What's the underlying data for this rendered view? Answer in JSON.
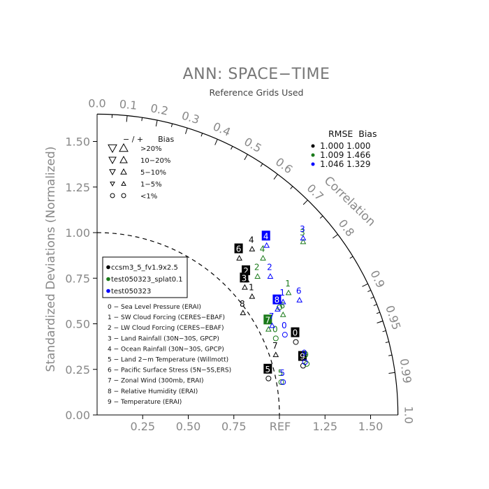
{
  "chart_data": {
    "type": "scatter",
    "subtype": "taylor-diagram",
    "title": "ANN: SPACE−TIME",
    "subtitle": "Reference Grids Used",
    "ylabel": "Standardized Deviations (Normalized)",
    "correlation_label": "Correlation",
    "ref_label": "REF",
    "xlim": [
      0,
      1.65
    ],
    "ylim": [
      0,
      1.65
    ],
    "std_ticks": [
      "0.00",
      "0.25",
      "0.50",
      "0.75",
      "1.00",
      "1.25",
      "1.50"
    ],
    "x_ticks": [
      "0.25",
      "0.50",
      "0.75",
      "1.25",
      "1.50"
    ],
    "x_tick_values": [
      0.25,
      0.5,
      0.75,
      1.25,
      1.5
    ],
    "y_tick_values": [
      0.0,
      0.25,
      0.5,
      0.75,
      1.0,
      1.25,
      1.5
    ],
    "corr_ticks": [
      {
        "label": "0.0",
        "value": 0.0
      },
      {
        "label": "0.1",
        "value": 0.1
      },
      {
        "label": "0.2",
        "value": 0.2
      },
      {
        "label": "0.3",
        "value": 0.3
      },
      {
        "label": "0.4",
        "value": 0.4
      },
      {
        "label": "0.5",
        "value": 0.5
      },
      {
        "label": "0.6",
        "value": 0.6
      },
      {
        "label": "0.7",
        "value": 0.7
      },
      {
        "label": "0.8",
        "value": 0.8
      },
      {
        "label": "0.9",
        "value": 0.9
      },
      {
        "label": "0.95",
        "value": 0.95
      },
      {
        "label": "0.99",
        "value": 0.99
      },
      {
        "label": "1.0",
        "value": 1.0
      }
    ],
    "bias_legend": {
      "header": "− / +      Bias",
      "rows": [
        {
          "label": ">20%"
        },
        {
          "label": "10−20%"
        },
        {
          "label": "5−10%"
        },
        {
          "label": "1−5%"
        },
        {
          "label": "<1%"
        }
      ]
    },
    "rmse_legend": {
      "header": "RMSE  Bias",
      "rows": [
        {
          "text": "1.000 1.000",
          "color": "#000000"
        },
        {
          "text": "1.009 1.466",
          "color": "#1a7a1a"
        },
        {
          "text": "1.046 1.329",
          "color": "#0000ff"
        }
      ]
    },
    "series": [
      {
        "name": "ccsm3_5_fv1.9x2.5",
        "color": "#000000",
        "points": [
          {
            "id": "0",
            "x": 1.09,
            "y": 0.4,
            "marker": "circle"
          },
          {
            "id": "1",
            "x": 0.85,
            "y": 0.65,
            "marker": "up"
          },
          {
            "id": "2",
            "x": 0.82,
            "y": 0.74,
            "marker": "up"
          },
          {
            "id": "3",
            "x": 0.81,
            "y": 0.7,
            "marker": "up"
          },
          {
            "id": "4",
            "x": 0.85,
            "y": 0.91,
            "marker": "up"
          },
          {
            "id": "5",
            "x": 0.94,
            "y": 0.2,
            "marker": "circle"
          },
          {
            "id": "6",
            "x": 0.78,
            "y": 0.86,
            "marker": "up"
          },
          {
            "id": "7",
            "x": 0.98,
            "y": 0.33,
            "marker": "up"
          },
          {
            "id": "8",
            "x": 0.8,
            "y": 0.56,
            "marker": "up"
          },
          {
            "id": "9",
            "x": 1.13,
            "y": 0.27,
            "marker": "circle"
          }
        ]
      },
      {
        "name": "test050323_splat0.1",
        "color": "#1a7a1a",
        "points": [
          {
            "id": "0",
            "x": 0.98,
            "y": 0.42,
            "marker": "circle"
          },
          {
            "id": "1",
            "x": 1.05,
            "y": 0.67,
            "marker": "up"
          },
          {
            "id": "2",
            "x": 0.88,
            "y": 0.76,
            "marker": "up"
          },
          {
            "id": "3",
            "x": 1.13,
            "y": 0.95,
            "marker": "up"
          },
          {
            "id": "4",
            "x": 0.91,
            "y": 0.86,
            "marker": "up"
          },
          {
            "id": "5",
            "x": 1.01,
            "y": 0.18,
            "marker": "circle"
          },
          {
            "id": "6",
            "x": 1.02,
            "y": 0.55,
            "marker": "up"
          },
          {
            "id": "7",
            "x": 0.94,
            "y": 0.47,
            "marker": "up"
          },
          {
            "id": "8",
            "x": 1.0,
            "y": 0.59,
            "marker": "circle"
          },
          {
            "id": "9",
            "x": 1.15,
            "y": 0.28,
            "marker": "circle"
          }
        ]
      },
      {
        "name": "test050323",
        "color": "#0000ff",
        "points": [
          {
            "id": "0",
            "x": 1.03,
            "y": 0.44,
            "marker": "circle"
          },
          {
            "id": "1",
            "x": 1.02,
            "y": 0.62,
            "marker": "up"
          },
          {
            "id": "2",
            "x": 0.95,
            "y": 0.76,
            "marker": "up"
          },
          {
            "id": "3",
            "x": 1.13,
            "y": 0.97,
            "marker": "up"
          },
          {
            "id": "4",
            "x": 0.93,
            "y": 0.93,
            "marker": "up"
          },
          {
            "id": "5",
            "x": 1.02,
            "y": 0.18,
            "marker": "circle"
          },
          {
            "id": "6",
            "x": 1.11,
            "y": 0.63,
            "marker": "up"
          },
          {
            "id": "7",
            "x": 0.96,
            "y": 0.49,
            "marker": "up"
          },
          {
            "id": "8",
            "x": 0.99,
            "y": 0.58,
            "marker": "up"
          },
          {
            "id": "9",
            "x": 1.14,
            "y": 0.29,
            "marker": "circle"
          }
        ]
      }
    ],
    "variables": [
      "0 − Sea Level Pressure (ERAI)",
      "1 − SW Cloud Forcing (CERES−EBAF)",
      "2 − LW Cloud Forcing (CERES−EBAF)",
      "3 − Land Rainfall (30N−30S, GPCP)",
      "4 − Ocean Rainfall (30N−30S, GPCP)",
      "5 − Land 2−m Temperature (Willmott)",
      "6 − Pacific Surface Stress (5N−5S,ERS)",
      "7 − Zonal Wind (300mb, ERAI)",
      "8 − Relative Humidity (ERAI)",
      "9 − Temperature (ERAI)"
    ]
  }
}
